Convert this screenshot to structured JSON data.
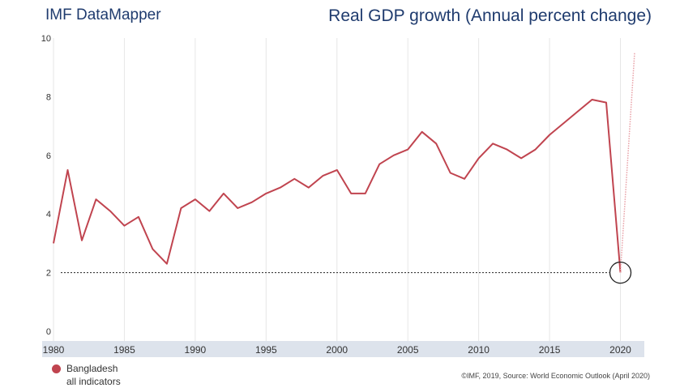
{
  "header": {
    "brand": "IMF DataMapper",
    "title": "Real GDP growth (Annual percent change)"
  },
  "legend": {
    "country": "Bangladesh",
    "sub": "all indicators",
    "color": "#c0444f"
  },
  "source": "©IMF, 2019, Source: World Economic Outlook (April 2020)",
  "colors": {
    "series": "#c0444f",
    "projection": "#e8a0a6",
    "title": "#1f3b6e",
    "axis_band": "#dde3ec",
    "grid": "#e6e6e6"
  },
  "chart_data": {
    "type": "line",
    "title": "Real GDP growth (Annual percent change)",
    "xlabel": "",
    "ylabel": "",
    "xlim": [
      1980,
      2021
    ],
    "ylim": [
      0,
      10
    ],
    "y_ticks": [
      "0",
      "2",
      "4",
      "6",
      "8",
      "10"
    ],
    "x_ticks": [
      "1980",
      "1985",
      "1990",
      "1995",
      "2000",
      "2005",
      "2010",
      "2015",
      "2020"
    ],
    "grid": "vertical",
    "legend_position": "bottom-left",
    "series": [
      {
        "name": "Bangladesh",
        "color": "#c0444f",
        "x": [
          1980,
          1981,
          1982,
          1983,
          1984,
          1985,
          1986,
          1987,
          1988,
          1989,
          1990,
          1991,
          1992,
          1993,
          1994,
          1995,
          1996,
          1997,
          1998,
          1999,
          2000,
          2001,
          2002,
          2003,
          2004,
          2005,
          2006,
          2007,
          2008,
          2009,
          2010,
          2011,
          2012,
          2013,
          2014,
          2015,
          2016,
          2017,
          2018,
          2019,
          2020
        ],
        "values": [
          3.0,
          5.5,
          3.1,
          4.5,
          4.1,
          3.6,
          3.9,
          2.8,
          2.3,
          4.2,
          4.5,
          4.1,
          4.7,
          4.2,
          4.4,
          4.7,
          4.9,
          5.2,
          4.9,
          5.3,
          5.5,
          4.7,
          4.7,
          5.7,
          6.0,
          6.2,
          6.8,
          6.4,
          5.4,
          5.2,
          5.9,
          6.4,
          6.2,
          5.9,
          6.2,
          6.7,
          7.1,
          7.5,
          7.9,
          7.8,
          2.0
        ]
      },
      {
        "name": "Bangladesh (projection)",
        "color": "#e8a0a6",
        "x": [
          2020,
          2021
        ],
        "values": [
          2.0,
          9.5
        ]
      }
    ],
    "reference_line": {
      "y": 2.0,
      "style": "dotted"
    },
    "highlight": {
      "x": 2020,
      "y": 2.0
    }
  }
}
